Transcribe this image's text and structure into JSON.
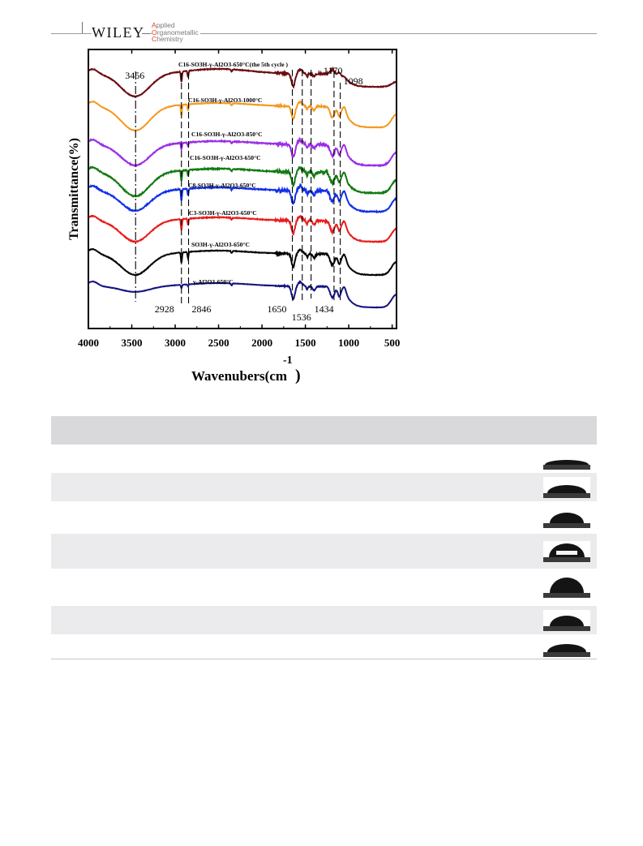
{
  "header": {
    "publisher": "WILEY",
    "journal_lines": [
      {
        "first": "A",
        "rest": "pplied"
      },
      {
        "first": "O",
        "rest": "rganometallic"
      },
      {
        "first": "C",
        "rest": "hemistry"
      }
    ],
    "accent_color": "#e8401c"
  },
  "chart_data": {
    "type": "line",
    "xlabel": "Wavenubers(cm",
    "xlabel_superscript": "-1",
    "xlabel_close": ")",
    "ylabel": "Transmittance(%)",
    "x_reversed": true,
    "xlim": [
      4000,
      450
    ],
    "x_ticks": [
      4000,
      3500,
      3000,
      2500,
      2000,
      1500,
      1000,
      500
    ],
    "y_ticks_shown": false,
    "series": [
      {
        "name": "C16-SO3H-γ-Al2O3-650°C(the 5th cycle )",
        "color": "#6b0d12",
        "offset": 7
      },
      {
        "name": "C16-SO3H-γ-Al2O3-1000°C",
        "color": "#f39a21",
        "offset": 6
      },
      {
        "name": "C16-SO3H-γ-Al2O3-850°C",
        "color": "#9a2ee6",
        "offset": 5
      },
      {
        "name": "C16-SO3H-γ-Al2O3-650°C",
        "color": "#127a12",
        "offset": 4
      },
      {
        "name": "C8-SO3H-γ-Al2O3-650°C",
        "color": "#1230e6",
        "offset": 3
      },
      {
        "name": "C3-SO3H-γ-Al2O3-650°C",
        "color": "#ea1c1c",
        "offset": 2
      },
      {
        "name": "SO3H-γ-Al2O3-650°C",
        "color": "#050505",
        "offset": 1
      },
      {
        "name": "γ-Al2O3-650°C",
        "color": "#141480",
        "offset": 0
      }
    ],
    "peak_labels": [
      "3456",
      "2928",
      "2846",
      "1650",
      "1536",
      "1434",
      "1170",
      "1098"
    ],
    "peak_positions": [
      3456,
      2928,
      2846,
      1650,
      1536,
      1434,
      1170,
      1098
    ]
  },
  "table": {
    "header_color": "#d9d9dc",
    "stripe_color": "#ebebed",
    "rows": [
      {
        "shaded": false,
        "drop": "flat"
      },
      {
        "shaded": true,
        "drop": "low"
      },
      {
        "shaded": false,
        "drop": "medium"
      },
      {
        "shaded": true,
        "drop": "high-bubbled"
      },
      {
        "shaded": false,
        "drop": "tall"
      },
      {
        "shaded": true,
        "drop": "medium"
      },
      {
        "shaded": false,
        "drop": "low"
      }
    ]
  }
}
